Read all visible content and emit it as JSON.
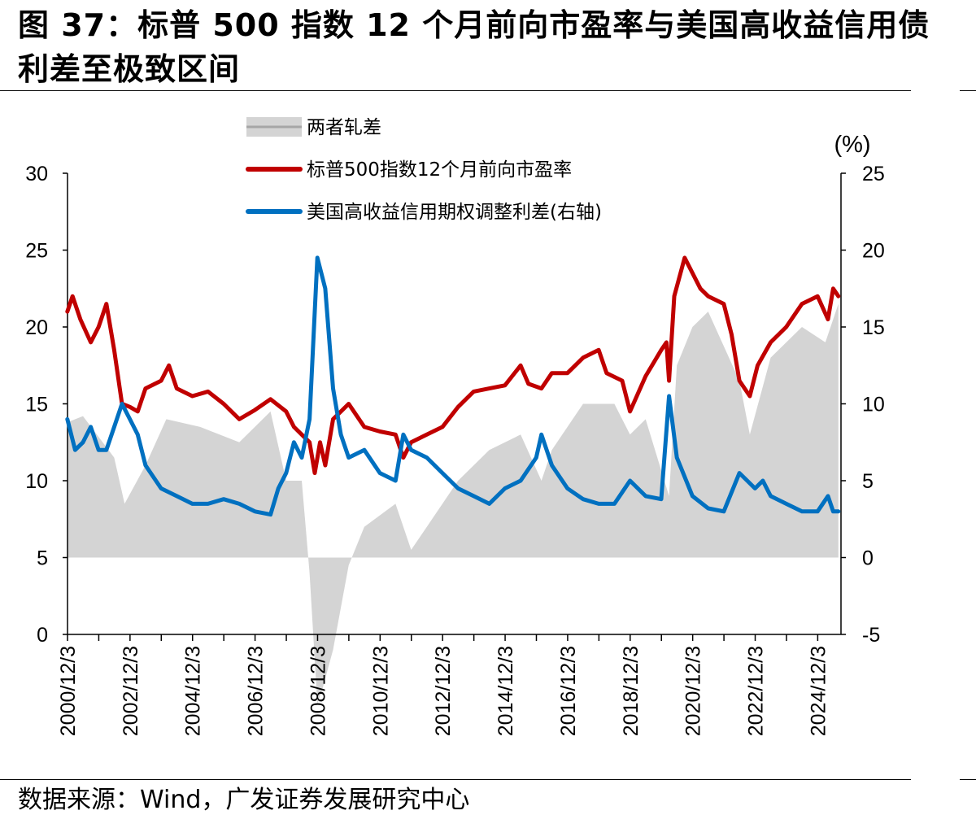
{
  "figure": {
    "title": "图 37：标普 500 指数 12 个月前向市盈率与美国高收益信用债利差至极致区间",
    "source": "数据来源：Wind，广发证券发展研究中心"
  },
  "colors": {
    "gap_fill": "#d4d4d4",
    "pe_line": "#c00000",
    "spread_line": "#0070c0"
  },
  "chart_data": {
    "type": "line",
    "title": "",
    "x_tick_labels": [
      "2000/12/3",
      "2002/12/3",
      "2004/12/3",
      "2006/12/3",
      "2008/12/3",
      "2010/12/3",
      "2012/12/3",
      "2014/12/3",
      "2016/12/3",
      "2018/12/3",
      "2020/12/3",
      "2022/12/3",
      "2024/12/3"
    ],
    "x_range": [
      "2000-12-03",
      "2025-08-31"
    ],
    "y_left": {
      "range": [
        0,
        30
      ],
      "ticks": [
        0,
        5,
        10,
        15,
        20,
        25,
        30
      ]
    },
    "y_right": {
      "range": [
        -5,
        25
      ],
      "ticks": [
        -5,
        0,
        5,
        10,
        15,
        20,
        25
      ],
      "unit_label": "(%)"
    },
    "legend_placement": "top-center",
    "series": [
      {
        "name": "两者轧差",
        "kind": "area",
        "axis": "left",
        "points": [
          [
            "2000-12",
            13.8
          ],
          [
            "2001-06",
            14.2
          ],
          [
            "2002-06",
            11.5
          ],
          [
            "2002-10",
            8.5
          ],
          [
            "2003-06",
            11.0
          ],
          [
            "2004-02",
            14.0
          ],
          [
            "2005-03",
            13.5
          ],
          [
            "2006-06",
            12.5
          ],
          [
            "2007-06",
            14.5
          ],
          [
            "2007-12",
            10.0
          ],
          [
            "2008-06",
            10.0
          ],
          [
            "2008-09",
            4.0
          ],
          [
            "2008-12",
            -4.5
          ],
          [
            "2009-02",
            -3.5
          ],
          [
            "2009-06",
            -1.0
          ],
          [
            "2009-12",
            4.5
          ],
          [
            "2010-06",
            7.0
          ],
          [
            "2011-06",
            8.5
          ],
          [
            "2011-12",
            5.5
          ],
          [
            "2012-06",
            7.0
          ],
          [
            "2013-06",
            10.0
          ],
          [
            "2014-06",
            12.0
          ],
          [
            "2015-06",
            13.0
          ],
          [
            "2016-02",
            10.0
          ],
          [
            "2016-06",
            12.0
          ],
          [
            "2017-06",
            15.0
          ],
          [
            "2018-06",
            15.0
          ],
          [
            "2018-12",
            13.0
          ],
          [
            "2019-06",
            14.0
          ],
          [
            "2020-03",
            9.0
          ],
          [
            "2020-06",
            17.5
          ],
          [
            "2020-12",
            20.0
          ],
          [
            "2021-06",
            21.0
          ],
          [
            "2022-06",
            16.5
          ],
          [
            "2022-10",
            13.0
          ],
          [
            "2023-06",
            18.0
          ],
          [
            "2024-06",
            20.0
          ],
          [
            "2025-03",
            19.0
          ],
          [
            "2025-08",
            21.5
          ]
        ]
      },
      {
        "name": "标普500指数12个月前向市盈率",
        "kind": "line",
        "axis": "left",
        "points": [
          [
            "2000-12",
            21.0
          ],
          [
            "2001-02",
            22.0
          ],
          [
            "2001-05",
            20.5
          ],
          [
            "2001-09",
            19.0
          ],
          [
            "2001-12",
            20.0
          ],
          [
            "2002-03",
            21.5
          ],
          [
            "2002-06",
            18.5
          ],
          [
            "2002-09",
            15.0
          ],
          [
            "2002-12",
            14.8
          ],
          [
            "2003-03",
            14.5
          ],
          [
            "2003-06",
            16.0
          ],
          [
            "2003-12",
            16.5
          ],
          [
            "2004-03",
            17.5
          ],
          [
            "2004-06",
            16.0
          ],
          [
            "2004-12",
            15.5
          ],
          [
            "2005-06",
            15.8
          ],
          [
            "2005-12",
            15.0
          ],
          [
            "2006-06",
            14.0
          ],
          [
            "2006-12",
            14.6
          ],
          [
            "2007-06",
            15.3
          ],
          [
            "2007-12",
            14.5
          ],
          [
            "2008-03",
            13.5
          ],
          [
            "2008-06",
            13.0
          ],
          [
            "2008-09",
            12.5
          ],
          [
            "2008-11",
            10.5
          ],
          [
            "2009-01",
            12.5
          ],
          [
            "2009-03",
            11.0
          ],
          [
            "2009-06",
            14.0
          ],
          [
            "2009-12",
            15.0
          ],
          [
            "2010-06",
            13.5
          ],
          [
            "2010-12",
            13.2
          ],
          [
            "2011-06",
            13.0
          ],
          [
            "2011-09",
            11.5
          ],
          [
            "2011-12",
            12.5
          ],
          [
            "2012-06",
            13.0
          ],
          [
            "2012-12",
            13.5
          ],
          [
            "2013-06",
            14.8
          ],
          [
            "2013-12",
            15.8
          ],
          [
            "2014-06",
            16.0
          ],
          [
            "2014-12",
            16.2
          ],
          [
            "2015-06",
            17.5
          ],
          [
            "2015-09",
            16.3
          ],
          [
            "2016-02",
            16.0
          ],
          [
            "2016-06",
            17.0
          ],
          [
            "2016-12",
            17.0
          ],
          [
            "2017-06",
            18.0
          ],
          [
            "2017-12",
            18.5
          ],
          [
            "2018-03",
            17.0
          ],
          [
            "2018-09",
            16.5
          ],
          [
            "2018-12",
            14.5
          ],
          [
            "2019-06",
            16.8
          ],
          [
            "2019-12",
            18.5
          ],
          [
            "2020-02",
            19.0
          ],
          [
            "2020-03",
            16.5
          ],
          [
            "2020-05",
            22.0
          ],
          [
            "2020-09",
            24.5
          ],
          [
            "2021-03",
            22.5
          ],
          [
            "2021-06",
            22.0
          ],
          [
            "2021-12",
            21.5
          ],
          [
            "2022-03",
            19.5
          ],
          [
            "2022-06",
            16.5
          ],
          [
            "2022-10",
            15.5
          ],
          [
            "2023-01",
            17.5
          ],
          [
            "2023-06",
            19.0
          ],
          [
            "2023-12",
            20.0
          ],
          [
            "2024-06",
            21.5
          ],
          [
            "2024-12",
            22.0
          ],
          [
            "2025-04",
            20.5
          ],
          [
            "2025-06",
            22.5
          ],
          [
            "2025-08",
            22.0
          ]
        ]
      },
      {
        "name": "美国高收益信用期权调整利差(右轴)",
        "kind": "line",
        "axis": "right",
        "points": [
          [
            "2000-12",
            9.0
          ],
          [
            "2001-03",
            7.0
          ],
          [
            "2001-06",
            7.5
          ],
          [
            "2001-09",
            8.5
          ],
          [
            "2001-12",
            7.0
          ],
          [
            "2002-03",
            7.0
          ],
          [
            "2002-06",
            8.5
          ],
          [
            "2002-09",
            10.0
          ],
          [
            "2002-12",
            9.0
          ],
          [
            "2003-03",
            8.0
          ],
          [
            "2003-06",
            6.0
          ],
          [
            "2003-12",
            4.5
          ],
          [
            "2004-06",
            4.0
          ],
          [
            "2004-12",
            3.5
          ],
          [
            "2005-06",
            3.5
          ],
          [
            "2005-12",
            3.8
          ],
          [
            "2006-06",
            3.5
          ],
          [
            "2006-12",
            3.0
          ],
          [
            "2007-06",
            2.8
          ],
          [
            "2007-09",
            4.5
          ],
          [
            "2007-12",
            5.5
          ],
          [
            "2008-03",
            7.5
          ],
          [
            "2008-06",
            6.5
          ],
          [
            "2008-09",
            9.0
          ],
          [
            "2008-12",
            19.5
          ],
          [
            "2009-03",
            17.5
          ],
          [
            "2009-06",
            11.0
          ],
          [
            "2009-09",
            8.0
          ],
          [
            "2009-12",
            6.5
          ],
          [
            "2010-06",
            7.0
          ],
          [
            "2010-12",
            5.5
          ],
          [
            "2011-06",
            5.0
          ],
          [
            "2011-09",
            8.0
          ],
          [
            "2011-12",
            7.0
          ],
          [
            "2012-06",
            6.5
          ],
          [
            "2012-12",
            5.5
          ],
          [
            "2013-06",
            4.5
          ],
          [
            "2013-12",
            4.0
          ],
          [
            "2014-06",
            3.5
          ],
          [
            "2014-12",
            4.5
          ],
          [
            "2015-06",
            5.0
          ],
          [
            "2015-12",
            6.5
          ],
          [
            "2016-02",
            8.0
          ],
          [
            "2016-06",
            6.0
          ],
          [
            "2016-12",
            4.5
          ],
          [
            "2017-06",
            3.8
          ],
          [
            "2017-12",
            3.5
          ],
          [
            "2018-06",
            3.5
          ],
          [
            "2018-12",
            5.0
          ],
          [
            "2019-06",
            4.0
          ],
          [
            "2019-12",
            3.8
          ],
          [
            "2020-03",
            10.5
          ],
          [
            "2020-06",
            6.5
          ],
          [
            "2020-12",
            4.0
          ],
          [
            "2021-06",
            3.2
          ],
          [
            "2021-12",
            3.0
          ],
          [
            "2022-06",
            5.5
          ],
          [
            "2022-09",
            5.0
          ],
          [
            "2022-12",
            4.5
          ],
          [
            "2023-03",
            5.0
          ],
          [
            "2023-06",
            4.0
          ],
          [
            "2023-12",
            3.5
          ],
          [
            "2024-06",
            3.0
          ],
          [
            "2024-12",
            3.0
          ],
          [
            "2025-04",
            4.0
          ],
          [
            "2025-06",
            3.0
          ],
          [
            "2025-08",
            3.0
          ]
        ]
      }
    ]
  }
}
